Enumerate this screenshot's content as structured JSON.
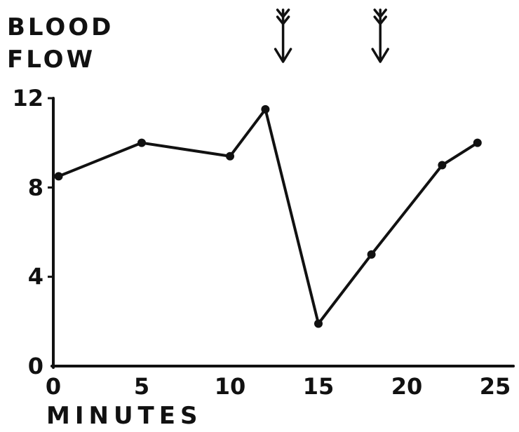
{
  "chart_data": {
    "type": "line",
    "title": "",
    "ylabel": [
      "BLOOD",
      "FLOW"
    ],
    "xlabel": "MINUTES",
    "x_ticks": [
      "0",
      "5",
      "10",
      "15",
      "20",
      "25"
    ],
    "x_tick_values": [
      0,
      5,
      10,
      15,
      20,
      25
    ],
    "y_ticks": [
      "0",
      "4",
      "8",
      "12"
    ],
    "y_tick_values": [
      0,
      4,
      8,
      12
    ],
    "xlim": [
      0,
      25
    ],
    "ylim": [
      0,
      12
    ],
    "grid": false,
    "series": [
      {
        "x": [
          0.3,
          5,
          10,
          12,
          15,
          18,
          22,
          24
        ],
        "y": [
          8.5,
          10,
          9.4,
          11.5,
          1.9,
          5,
          9,
          10
        ]
      }
    ],
    "annotations": [
      {
        "type": "double-arrow-down",
        "x": 13
      },
      {
        "type": "double-arrow-down",
        "x": 18.5
      }
    ],
    "colors": {
      "ink": "#111111"
    }
  }
}
